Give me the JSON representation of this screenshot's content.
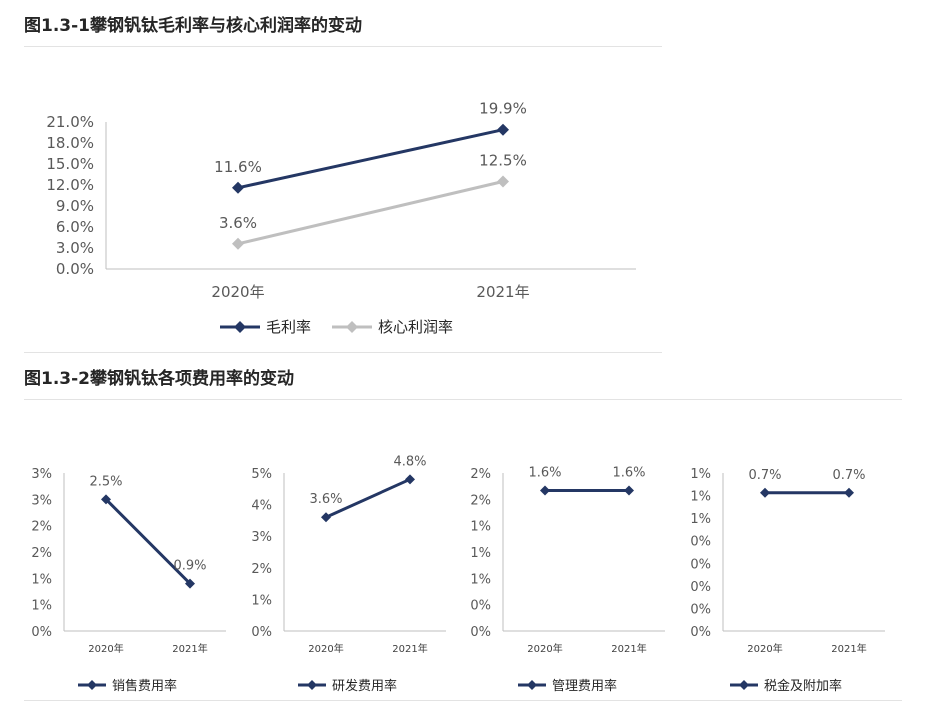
{
  "section1": {
    "title": "图1.3-1攀钢钒钛毛利率与核心利润率的变动"
  },
  "section2": {
    "title": "图1.3-2攀钢钒钛各项费用率的变动"
  },
  "colors": {
    "navy": "#243764",
    "gray": "#bfbfbf",
    "axis": "#bfbfbf"
  },
  "chart_data": [
    {
      "type": "line",
      "categories": [
        "2020年",
        "2021年"
      ],
      "series": [
        {
          "name": "毛利率",
          "values": [
            11.6,
            19.9
          ],
          "labels": [
            "11.6%",
            "19.9%"
          ],
          "color": "#243764"
        },
        {
          "name": "核心利润率",
          "values": [
            3.6,
            12.5
          ],
          "labels": [
            "3.6%",
            "12.5%"
          ],
          "color": "#bfbfbf"
        }
      ],
      "yticks": [
        "0.0%",
        "3.0%",
        "6.0%",
        "9.0%",
        "12.0%",
        "15.0%",
        "18.0%",
        "21.0%"
      ],
      "ylim": [
        0,
        21
      ],
      "legend": "bottom"
    },
    {
      "type": "line",
      "categories": [
        "2020年",
        "2021年"
      ],
      "series": [
        {
          "name": "销售费用率",
          "values": [
            2.5,
            0.9
          ],
          "labels": [
            "2.5%",
            "0.9%"
          ],
          "color": "#243764"
        }
      ],
      "yticks": [
        "0%",
        "1%",
        "1%",
        "2%",
        "2%",
        "3%",
        "3%"
      ],
      "ylim": [
        0,
        3.0
      ],
      "legend": "bottom"
    },
    {
      "type": "line",
      "categories": [
        "2020年",
        "2021年"
      ],
      "series": [
        {
          "name": "研发费用率",
          "values": [
            3.6,
            4.8
          ],
          "labels": [
            "3.6%",
            "4.8%"
          ],
          "color": "#243764"
        }
      ],
      "yticks": [
        "0%",
        "1%",
        "2%",
        "3%",
        "4%",
        "5%"
      ],
      "ylim": [
        0,
        5
      ],
      "legend": "bottom"
    },
    {
      "type": "line",
      "categories": [
        "2020年",
        "2021年"
      ],
      "series": [
        {
          "name": "管理费用率",
          "values": [
            1.6,
            1.6
          ],
          "labels": [
            "1.6%",
            "1.6%"
          ],
          "color": "#243764"
        }
      ],
      "yticks": [
        "0%",
        "0%",
        "1%",
        "1%",
        "1%",
        "2%",
        "2%"
      ],
      "ylim": [
        0,
        1.8
      ],
      "legend": "bottom"
    },
    {
      "type": "line",
      "categories": [
        "2020年",
        "2021年"
      ],
      "series": [
        {
          "name": "税金及附加率",
          "values": [
            0.7,
            0.7
          ],
          "labels": [
            "0.7%",
            "0.7%"
          ],
          "color": "#243764"
        }
      ],
      "yticks": [
        "0%",
        "0%",
        "0%",
        "0%",
        "0%",
        "1%",
        "1%",
        "1%"
      ],
      "ylim": [
        0,
        0.8
      ],
      "legend": "bottom"
    }
  ]
}
